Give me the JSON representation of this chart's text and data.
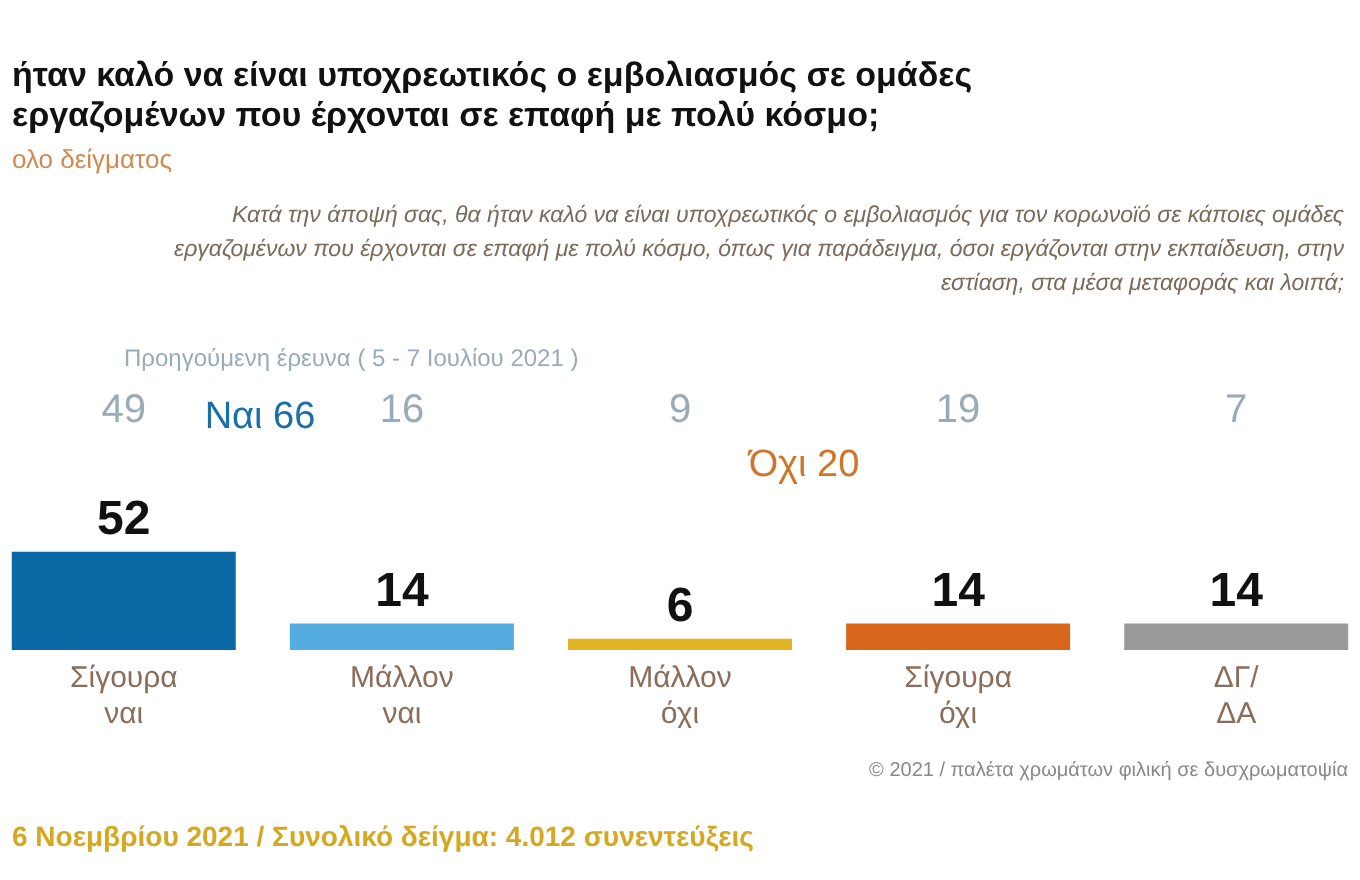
{
  "chart_data": {
    "type": "bar",
    "title": "ήταν καλό να είναι υποχρεωτικός ο εμβολιασμός σε ομάδες εργαζομένων που έρχονται σε επαφή με πολύ κόσμο;",
    "subtitle": "ολο δείγματος",
    "categories": [
      "Σίγουρα ναι",
      "Μάλλον ναι",
      "Μάλλον όχι",
      "Σίγουρα όχι",
      "ΔΓ/ ΔΑ"
    ],
    "values": [
      52,
      14,
      6,
      14,
      14
    ],
    "colors": [
      "#0b6aa6",
      "#55ace0",
      "#e2b423",
      "#d8661b",
      "#9a9a9a"
    ],
    "data_labels": true,
    "tick_labels": "x",
    "annotations": [
      "Κατά την άποψή σας, θα ήταν καλό να είναι υποχρεωτικός ο εμβολιασμός για τον κορωνοϊό σε κάποιες ομάδες εργαζομένων που έρχονται σε επαφή με πολύ κόσμο, όπως για παράδειγμα, όσοι εργάζονται στην εκπαίδευση, στην εστίαση, στα μέσα μεταφοράς και λοιπά;",
      "Προηγούμενη έρευνα ( 5 - 7 Ιουλίου 2021 )",
      "49",
      "16",
      "9",
      "19",
      "7",
      "Ναι 66",
      "Όχι 20",
      "© 2021 / παλέτα χρωμάτων φιλική σε δυσχρωματοψία",
      "6 Νοεμβρίου 2021 / Συνολικό δείγμα: 4.012 συνεντεύξεις"
    ]
  }
}
